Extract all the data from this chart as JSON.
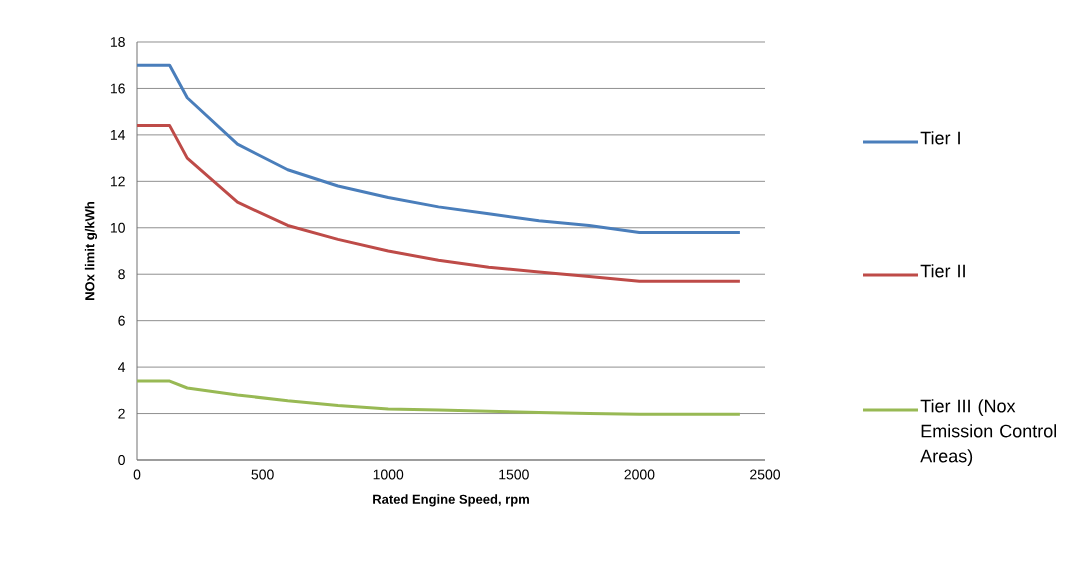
{
  "chart_data": {
    "type": "line",
    "xlabel": "Rated Engine Speed, rpm",
    "ylabel": "NOx limit  g/kWh",
    "x": [
      0,
      130,
      200,
      400,
      600,
      800,
      1000,
      1200,
      1400,
      1600,
      1800,
      2000,
      2400
    ],
    "series": [
      {
        "name": "Tier I",
        "color": "#4a7ebb",
        "values": [
          17,
          17,
          15.6,
          13.6,
          12.5,
          11.8,
          11.3,
          10.9,
          10.6,
          10.3,
          10.1,
          9.8,
          9.8
        ]
      },
      {
        "name": "Tier II",
        "color": "#be4b48",
        "values": [
          14.4,
          14.4,
          13.0,
          11.1,
          10.1,
          9.5,
          9.0,
          8.6,
          8.3,
          8.1,
          7.9,
          7.7,
          7.7
        ]
      },
      {
        "name": "Tier III (Nox Emission Control Areas)",
        "color": "#98b954",
        "values": [
          3.4,
          3.4,
          3.1,
          2.8,
          2.55,
          2.35,
          2.2,
          2.15,
          2.1,
          2.05,
          2.0,
          1.97,
          1.97
        ]
      }
    ],
    "xlim": [
      0,
      2500
    ],
    "ylim": [
      0,
      18
    ],
    "xticks": [
      0,
      500,
      1000,
      1500,
      2000,
      2500
    ],
    "yticks": [
      0,
      2,
      4,
      6,
      8,
      10,
      12,
      14,
      16,
      18
    ],
    "grid": "y",
    "legend": "right",
    "marker": "none",
    "line_style": "solid"
  }
}
